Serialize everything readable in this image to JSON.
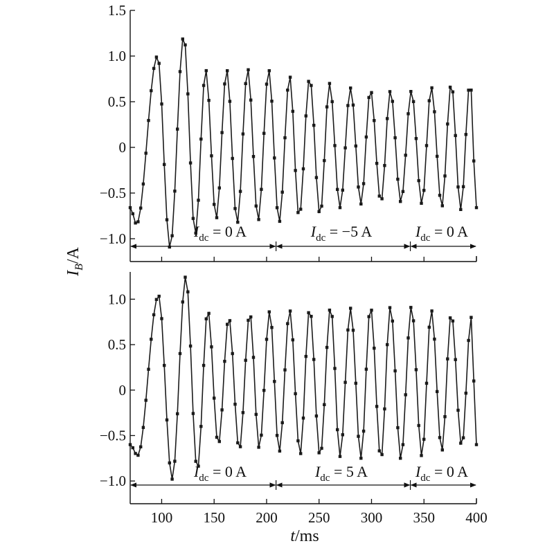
{
  "chart_data": [
    {
      "type": "line",
      "panel": "top",
      "xlim": [
        70,
        400
      ],
      "ylim": [
        -1.25,
        1.5
      ],
      "yticks": [
        {
          "value": 1.5,
          "label": "1.5"
        },
        {
          "value": 1.0,
          "label": "1.0"
        },
        {
          "value": 0.5,
          "label": "0.5"
        },
        {
          "value": 0,
          "label": "0"
        },
        {
          "value": -0.5,
          "label": "−0.5"
        },
        {
          "value": -1.0,
          "label": "−1.0"
        }
      ],
      "grid": false,
      "sampling_ms": 2.5,
      "start": {
        "t": 70,
        "value": -0.66,
        "phase": "rising"
      },
      "peaks": [
        {
          "t": 96,
          "value": 1.0
        },
        {
          "t": 121,
          "value": 1.22
        },
        {
          "t": 142,
          "value": 0.85
        },
        {
          "t": 162,
          "value": 0.85
        },
        {
          "t": 182,
          "value": 0.86
        },
        {
          "t": 202,
          "value": 0.85
        },
        {
          "t": 222,
          "value": 0.78
        },
        {
          "t": 241,
          "value": 0.76
        },
        {
          "t": 260,
          "value": 0.7
        },
        {
          "t": 280,
          "value": 0.65
        },
        {
          "t": 299,
          "value": 0.63
        },
        {
          "t": 318,
          "value": 0.62
        },
        {
          "t": 338,
          "value": 0.62
        },
        {
          "t": 357,
          "value": 0.66
        },
        {
          "t": 376,
          "value": 0.7
        },
        {
          "t": 394,
          "value": 0.72
        }
      ],
      "troughs": [
        {
          "t": 76,
          "value": -0.84
        },
        {
          "t": 108,
          "value": -1.1
        },
        {
          "t": 132,
          "value": -0.95
        },
        {
          "t": 152,
          "value": -0.78
        },
        {
          "t": 172,
          "value": -0.83
        },
        {
          "t": 192,
          "value": -0.8
        },
        {
          "t": 212,
          "value": -0.82
        },
        {
          "t": 231,
          "value": -0.76
        },
        {
          "t": 251,
          "value": -0.74
        },
        {
          "t": 270,
          "value": -0.66
        },
        {
          "t": 290,
          "value": -0.62
        },
        {
          "t": 309,
          "value": -0.6
        },
        {
          "t": 328,
          "value": -0.6
        },
        {
          "t": 348,
          "value": -0.62
        },
        {
          "t": 367,
          "value": -0.65
        },
        {
          "t": 385,
          "value": -0.68
        }
      ],
      "end": {
        "t": 400,
        "value": -0.66
      },
      "intervals": [
        {
          "symbol": "I",
          "subscript": "dc",
          "value_text": " = 0 A",
          "from": 70,
          "to": 209
        },
        {
          "symbol": "I",
          "subscript": "dc",
          "value_text": " = −5 A",
          "from": 209,
          "to": 337
        },
        {
          "symbol": "I",
          "subscript": "dc",
          "value_text": " = 0 A",
          "from": 337,
          "to": 400
        }
      ]
    },
    {
      "type": "line",
      "panel": "bottom",
      "xlim": [
        70,
        400
      ],
      "ylim": [
        -1.25,
        1.3
      ],
      "xticks": [
        100,
        150,
        200,
        250,
        300,
        350,
        400
      ],
      "yticks": [
        {
          "value": 1.0,
          "label": "1.0"
        },
        {
          "value": 0.5,
          "label": "0.5"
        },
        {
          "value": 0,
          "label": "0"
        },
        {
          "value": -0.5,
          "label": "−0.5"
        },
        {
          "value": -1.0,
          "label": "−1.0"
        }
      ],
      "grid": false,
      "sampling_ms": 2.5,
      "start": {
        "t": 70,
        "value": -0.6,
        "phase": "falling"
      },
      "peaks": [
        {
          "t": 97,
          "value": 1.04
        },
        {
          "t": 123,
          "value": 1.25
        },
        {
          "t": 144,
          "value": 0.88
        },
        {
          "t": 164,
          "value": 0.8
        },
        {
          "t": 184,
          "value": 0.85
        },
        {
          "t": 203,
          "value": 0.87
        },
        {
          "t": 222,
          "value": 0.88
        },
        {
          "t": 241,
          "value": 0.9
        },
        {
          "t": 261,
          "value": 0.92
        },
        {
          "t": 280,
          "value": 0.9
        },
        {
          "t": 299,
          "value": 0.92
        },
        {
          "t": 318,
          "value": 0.92
        },
        {
          "t": 338,
          "value": 0.92
        },
        {
          "t": 357,
          "value": 0.88
        },
        {
          "t": 376,
          "value": 0.84
        },
        {
          "t": 395,
          "value": 0.8
        }
      ],
      "troughs": [
        {
          "t": 77,
          "value": -0.72
        },
        {
          "t": 110,
          "value": -0.98
        },
        {
          "t": 134,
          "value": -0.88
        },
        {
          "t": 154,
          "value": -0.6
        },
        {
          "t": 174,
          "value": -0.66
        },
        {
          "t": 193,
          "value": -0.64
        },
        {
          "t": 212,
          "value": -0.68
        },
        {
          "t": 232,
          "value": -0.71
        },
        {
          "t": 251,
          "value": -0.73
        },
        {
          "t": 270,
          "value": -0.73
        },
        {
          "t": 290,
          "value": -0.75
        },
        {
          "t": 309,
          "value": -0.76
        },
        {
          "t": 328,
          "value": -0.76
        },
        {
          "t": 348,
          "value": -0.73
        },
        {
          "t": 367,
          "value": -0.67
        },
        {
          "t": 386,
          "value": -0.62
        }
      ],
      "end": {
        "t": 400,
        "value": -0.6
      },
      "intervals": [
        {
          "symbol": "I",
          "subscript": "dc",
          "value_text": " = 0 A",
          "from": 70,
          "to": 209
        },
        {
          "symbol": "I",
          "subscript": "dc",
          "value_text": " = 5 A",
          "from": 209,
          "to": 337
        },
        {
          "symbol": "I",
          "subscript": "dc",
          "value_text": " = 0 A",
          "from": 337,
          "to": 400
        }
      ]
    }
  ],
  "axes": {
    "ylabel": {
      "symbol": "I",
      "subscript": "B",
      "unit": "/A"
    },
    "xlabel": {
      "symbol": "t",
      "unit": "/ms"
    }
  },
  "colors": {
    "line": "#1a1a1a",
    "marker": "#1a1a1a",
    "axis": "#111111"
  }
}
